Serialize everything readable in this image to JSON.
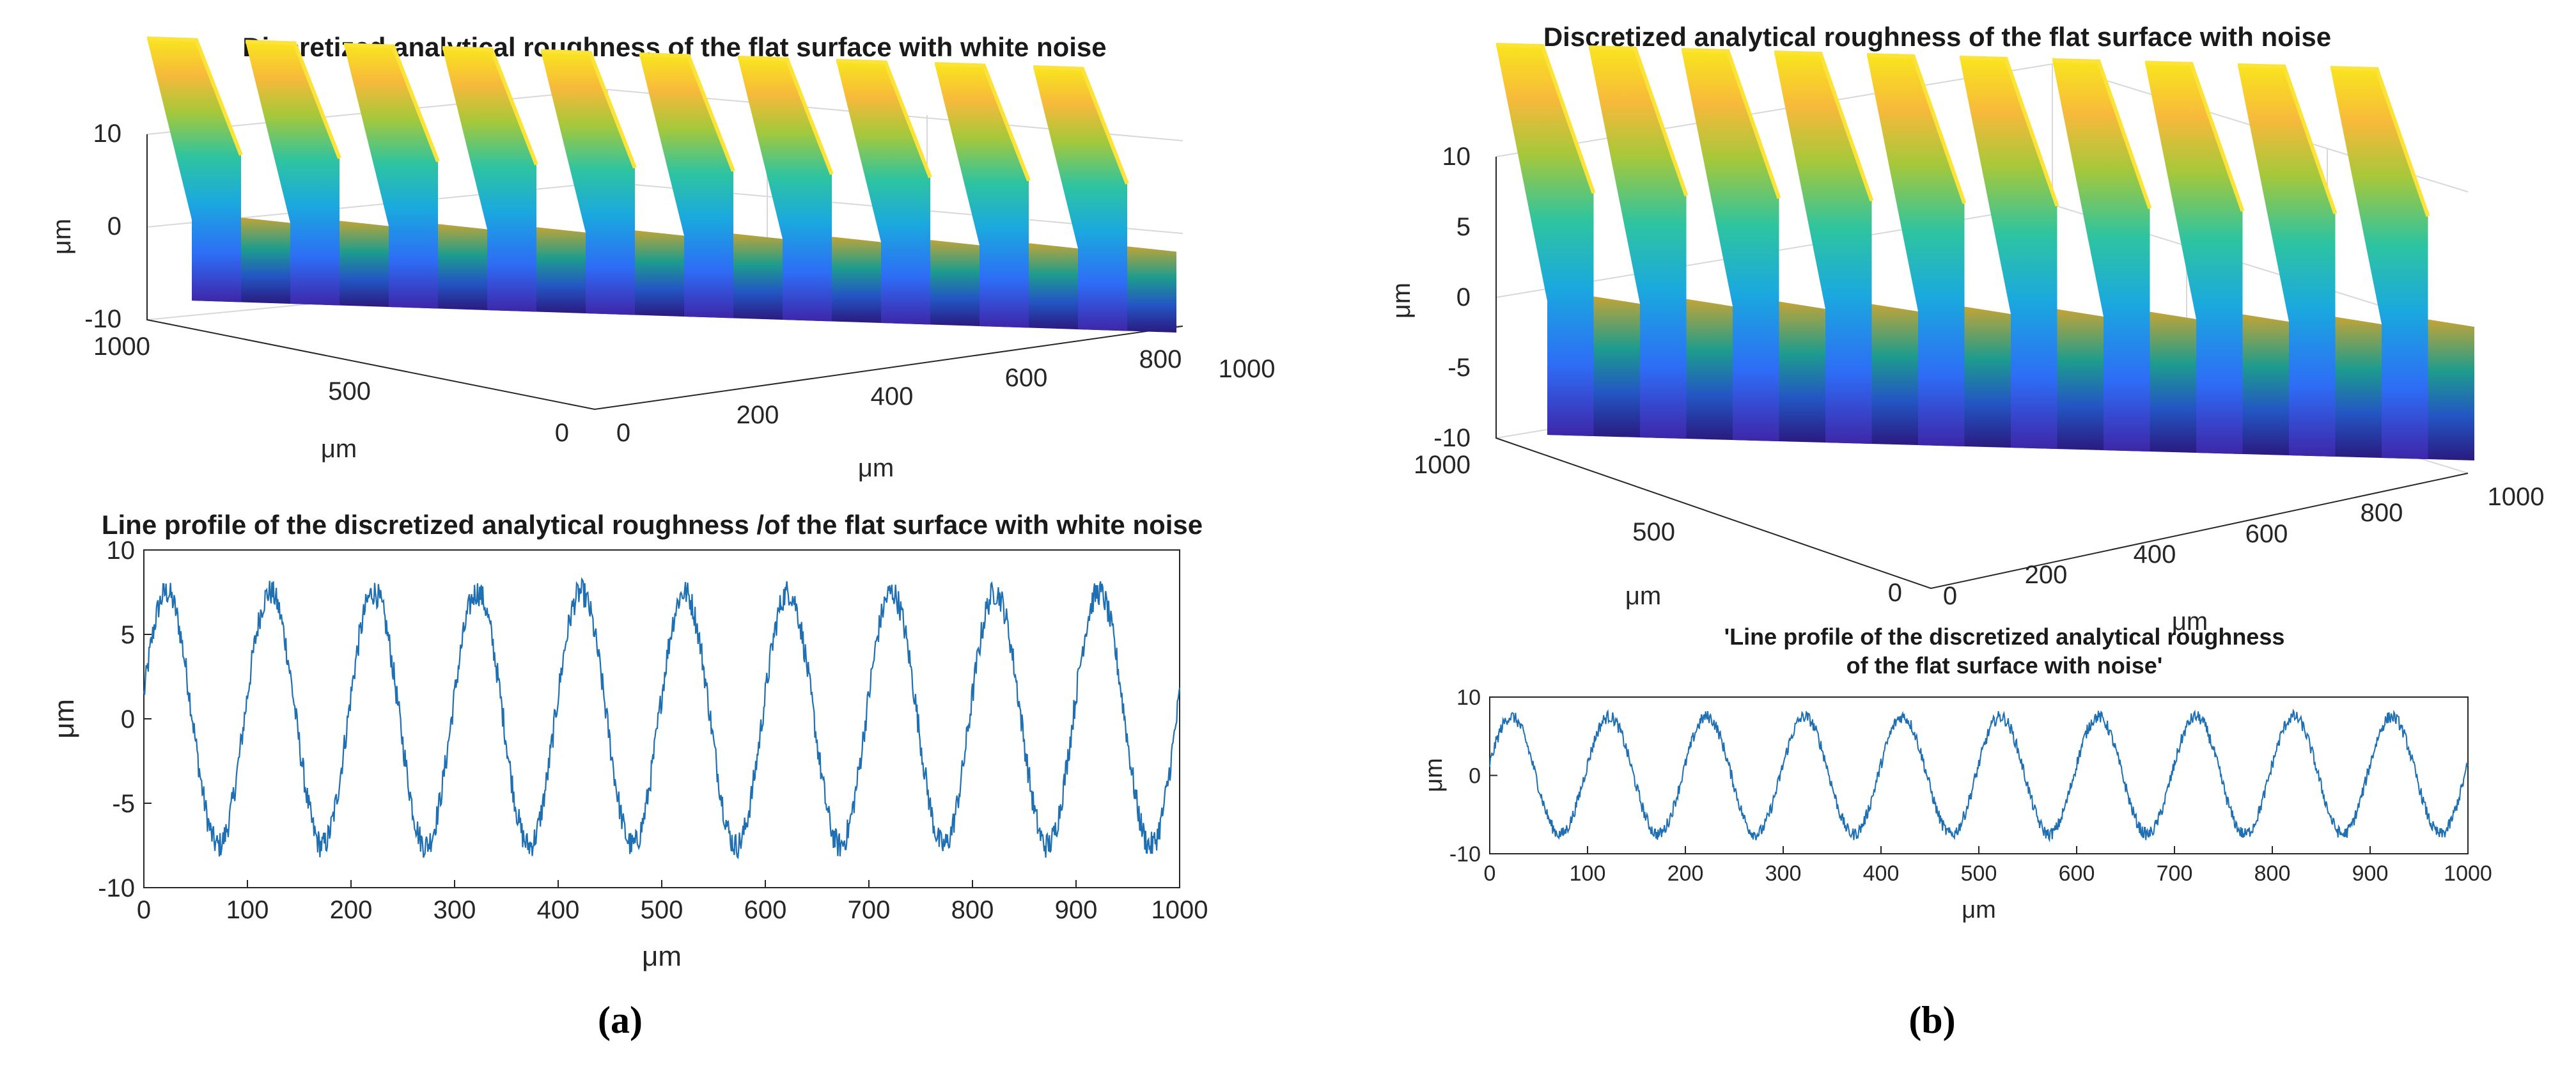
{
  "chart_data": [
    {
      "id": "a-surface",
      "type": "surface3d",
      "title": "Discretized analytical roughness of the flat surface with white noise",
      "xlabel": "μm",
      "ylabel": "μm",
      "zlabel": "μm",
      "x_ticks": [
        "0",
        "200",
        "400",
        "600",
        "800",
        "1000"
      ],
      "y_ticks": [
        "1000",
        "500",
        "0"
      ],
      "z_ticks": [
        "10",
        "0",
        "-10"
      ],
      "xlim": [
        0,
        1000
      ],
      "ylim": [
        0,
        1000
      ],
      "zlim": [
        -10,
        10
      ],
      "amplitude": 7.5,
      "period": 100,
      "colormap": "parula"
    },
    {
      "id": "a-profile",
      "type": "line",
      "title": "Line profile of the discretized analytical roughness /of the flat surface with white noise",
      "xlabel": "μm",
      "ylabel": "μm",
      "x_ticks": [
        "0",
        "100",
        "200",
        "300",
        "400",
        "500",
        "600",
        "700",
        "800",
        "900",
        "1000"
      ],
      "y_ticks": [
        "10",
        "5",
        "0",
        "-5",
        "-10"
      ],
      "xlim": [
        0,
        1000
      ],
      "ylim": [
        -10,
        10
      ],
      "amplitude": 7.5,
      "period": 100,
      "color": "#1f6fb3"
    },
    {
      "id": "b-surface",
      "type": "surface3d",
      "title": "Discretized analytical roughness of the flat surface with noise",
      "xlabel": "μm",
      "ylabel": "μm",
      "zlabel": "μm",
      "x_ticks": [
        "0",
        "200",
        "400",
        "600",
        "800",
        "1000"
      ],
      "y_ticks": [
        "1000",
        "500",
        "0"
      ],
      "z_ticks": [
        "10",
        "5",
        "0",
        "-5",
        "-10"
      ],
      "xlim": [
        0,
        1000
      ],
      "ylim": [
        0,
        1000
      ],
      "zlim": [
        -10,
        10
      ],
      "amplitude": 7.5,
      "period": 100,
      "colormap": "parula"
    },
    {
      "id": "b-profile",
      "type": "line",
      "title": "'Line profile of the discretized analytical roughness",
      "title_line2": "of the flat surface with noise'",
      "xlabel": "μm",
      "ylabel": "μm",
      "x_ticks": [
        "0",
        "100",
        "200",
        "300",
        "400",
        "500",
        "600",
        "700",
        "800",
        "900",
        "1000"
      ],
      "y_ticks": [
        "10",
        "0",
        "-10"
      ],
      "xlim": [
        0,
        1000
      ],
      "ylim": [
        -10,
        10
      ],
      "amplitude": 7.5,
      "period": 100,
      "color": "#1f6fb3"
    }
  ],
  "panels": {
    "a": "(a)",
    "b": "(b)"
  },
  "colors": {
    "line": "#1f6fb3",
    "axis": "#262626"
  }
}
